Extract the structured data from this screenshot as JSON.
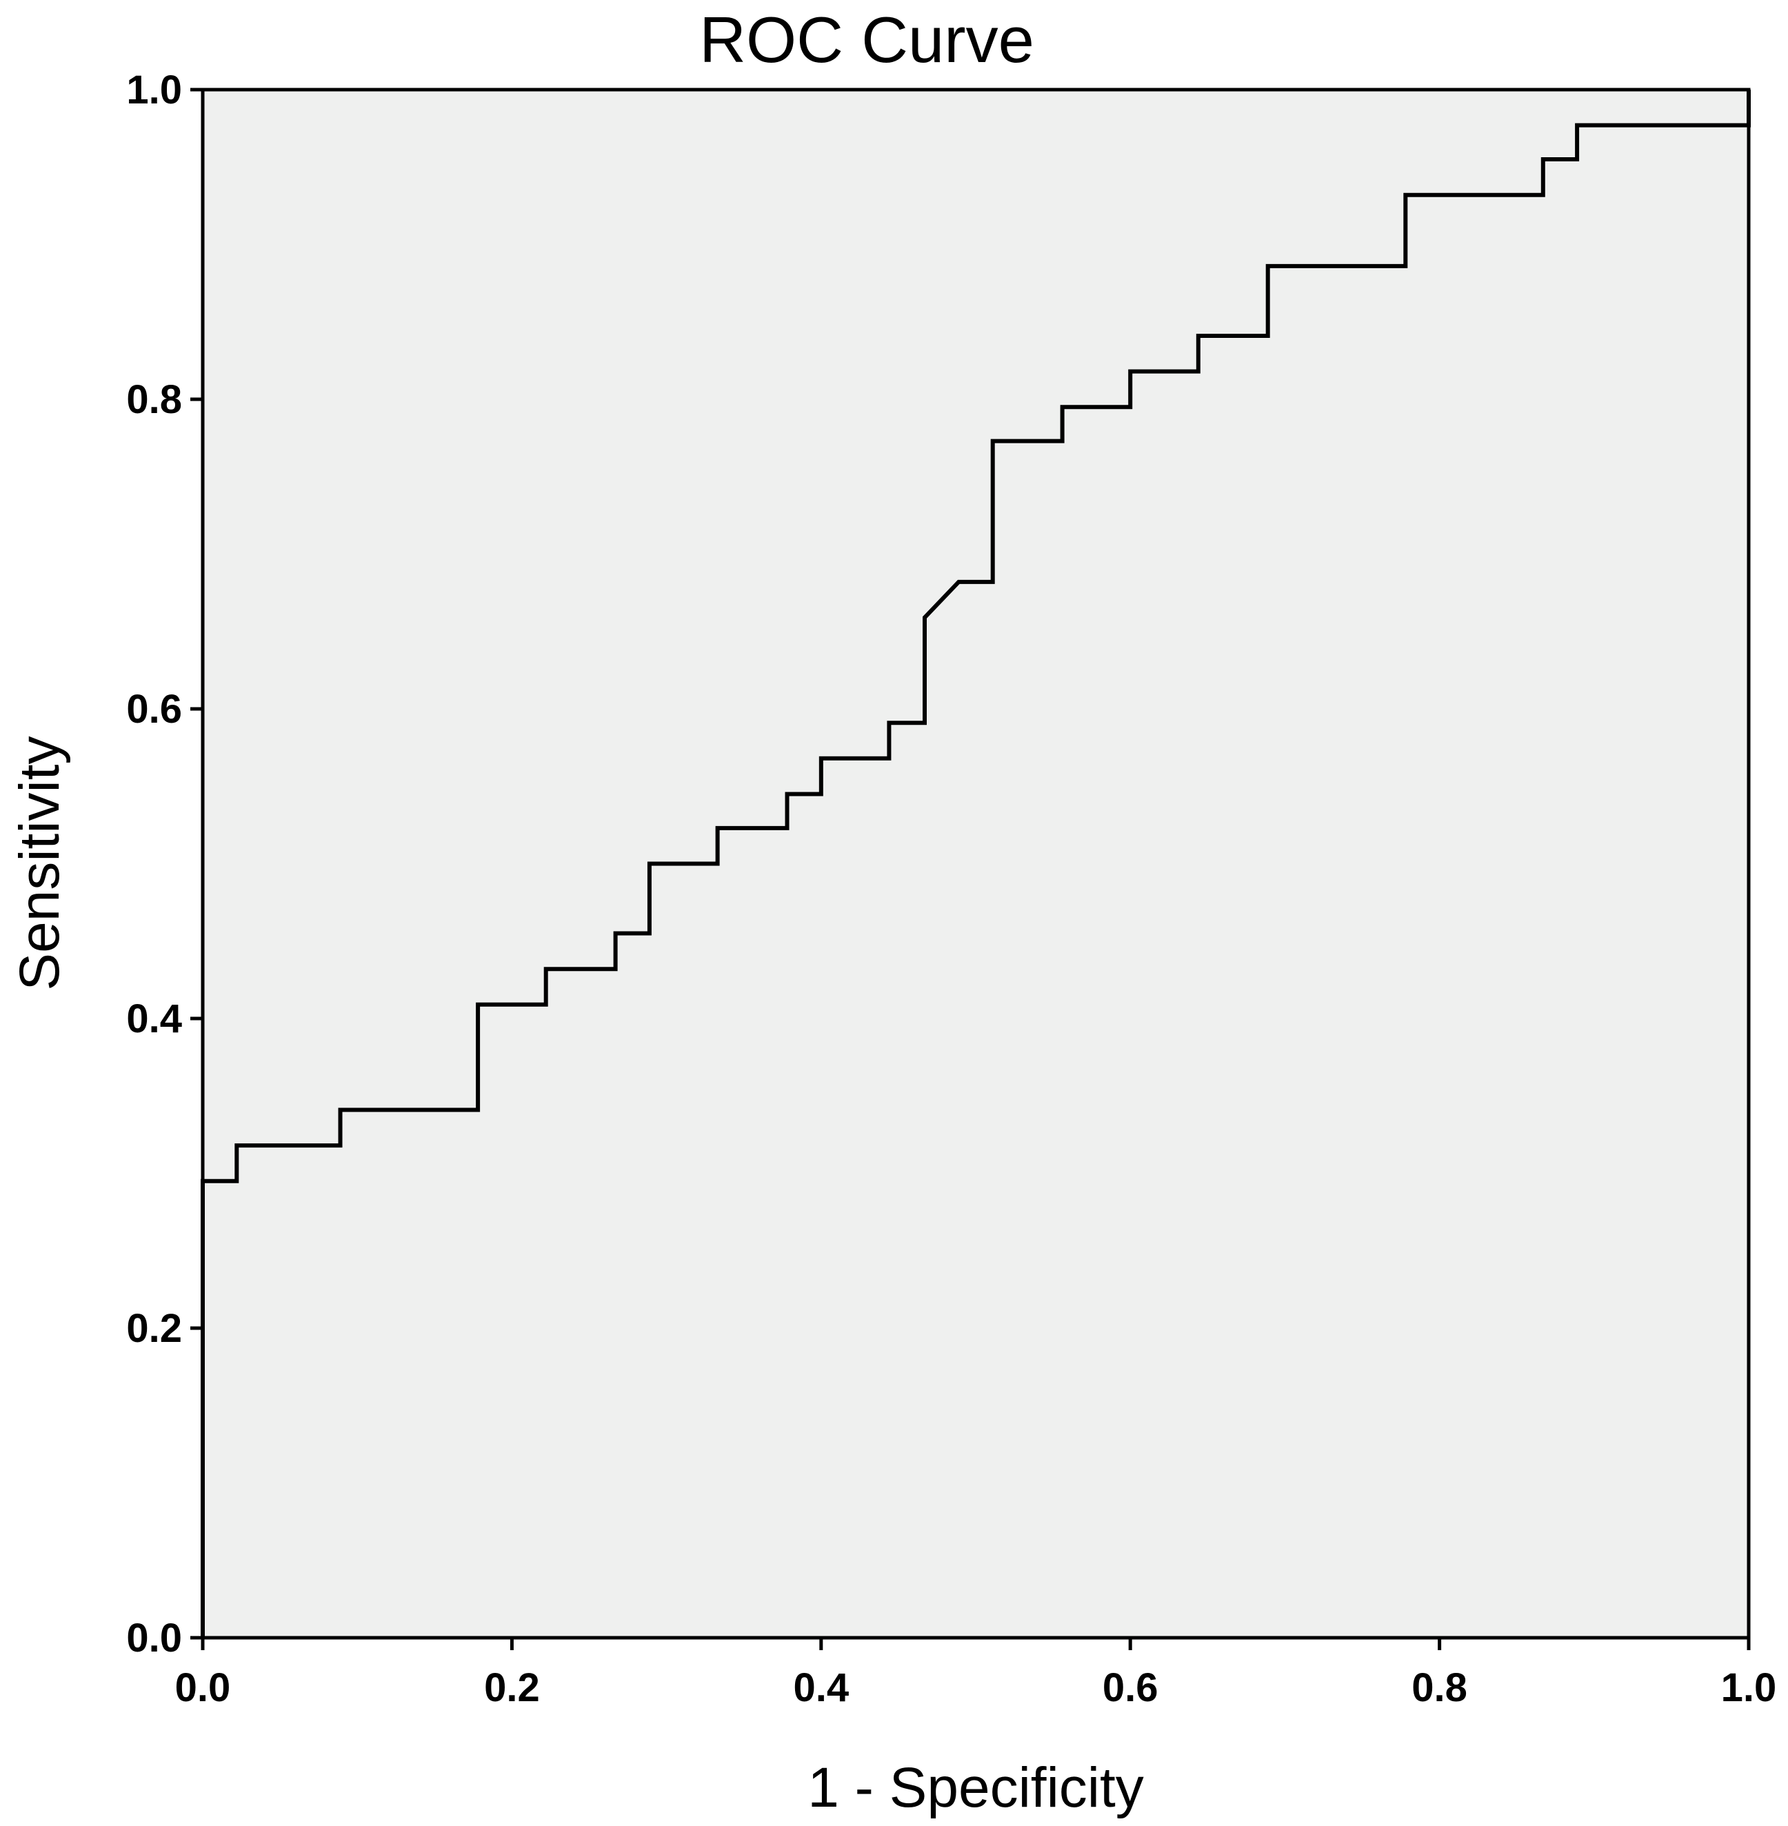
{
  "chart_data": {
    "type": "line",
    "title": "ROC Curve",
    "xlabel": "1 - Specificity",
    "ylabel": "Sensitivity",
    "xlim": [
      0.0,
      1.0
    ],
    "ylim": [
      0.0,
      1.0
    ],
    "x_ticks": [
      "0.0",
      "0.2",
      "0.4",
      "0.6",
      "0.8",
      "1.0"
    ],
    "y_ticks": [
      "0.0",
      "0.2",
      "0.4",
      "0.6",
      "0.8",
      "1.0"
    ],
    "grid": false,
    "legend": "none",
    "colors": {
      "plot_background": "#eff0ef",
      "line": "#000000",
      "axis": "#000000"
    },
    "series": [
      {
        "name": "ROC",
        "x": [
          0.0,
          0.0,
          0.022,
          0.022,
          0.089,
          0.089,
          0.178,
          0.178,
          0.222,
          0.222,
          0.267,
          0.267,
          0.289,
          0.289,
          0.333,
          0.333,
          0.378,
          0.378,
          0.4,
          0.4,
          0.444,
          0.444,
          0.467,
          0.467,
          0.489,
          0.511,
          0.511,
          0.556,
          0.556,
          0.6,
          0.6,
          0.644,
          0.644,
          0.689,
          0.689,
          0.778,
          0.778,
          0.867,
          0.867,
          0.889,
          0.889,
          1.0,
          1.0
        ],
        "y": [
          0.0,
          0.295,
          0.295,
          0.318,
          0.318,
          0.341,
          0.341,
          0.409,
          0.409,
          0.432,
          0.432,
          0.455,
          0.455,
          0.5,
          0.5,
          0.523,
          0.523,
          0.545,
          0.545,
          0.568,
          0.568,
          0.591,
          0.591,
          0.659,
          0.682,
          0.682,
          0.773,
          0.773,
          0.795,
          0.795,
          0.818,
          0.818,
          0.841,
          0.841,
          0.886,
          0.886,
          0.932,
          0.932,
          0.955,
          0.955,
          0.977,
          0.977,
          1.0
        ]
      }
    ]
  }
}
